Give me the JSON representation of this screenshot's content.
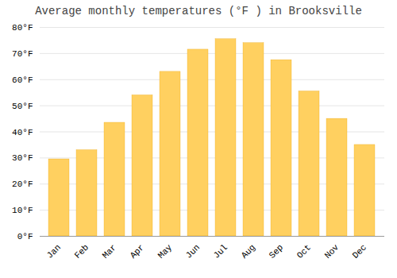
{
  "chart_data": {
    "type": "bar",
    "title": "Average monthly temperatures (°F ) in Brooksville",
    "categories": [
      "Jan",
      "Feb",
      "Mar",
      "Apr",
      "May",
      "Jun",
      "Jul",
      "Aug",
      "Sep",
      "Oct",
      "Nov",
      "Dec"
    ],
    "values": [
      29.5,
      33.0,
      43.5,
      54.0,
      63.0,
      71.5,
      75.5,
      74.0,
      67.5,
      55.5,
      45.0,
      35.0
    ],
    "color": "#FFD060",
    "ylim": [
      0,
      80
    ],
    "yticks": [
      {
        "value": 0,
        "label": "0°F"
      },
      {
        "value": 10,
        "label": "10°F"
      },
      {
        "value": 20,
        "label": "20°F"
      },
      {
        "value": 30,
        "label": "30°F"
      },
      {
        "value": 40,
        "label": "40°F"
      },
      {
        "value": 50,
        "label": "50°F"
      },
      {
        "value": 60,
        "label": "60°F"
      },
      {
        "value": 70,
        "label": "70°F"
      },
      {
        "value": 80,
        "label": "80°F"
      }
    ],
    "grid": true
  }
}
